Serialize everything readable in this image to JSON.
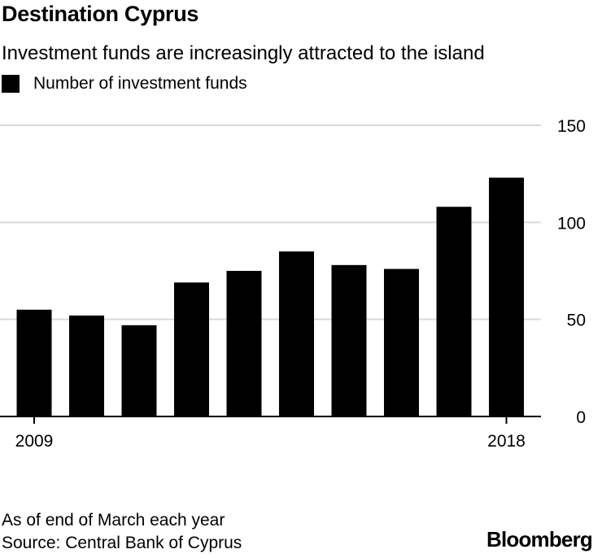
{
  "title": "Destination Cyprus",
  "subtitle": "Investment funds are increasingly attracted to the island",
  "note": "As of end of March each year",
  "source": "Source: Central Bank of Cyprus",
  "brand": "Bloomberg",
  "colors": {
    "bar": "#000000",
    "grid": "#d9d9d9",
    "baseline": "#000000"
  },
  "chart_data": {
    "type": "bar",
    "title": "Destination Cyprus",
    "subtitle": "Investment funds are increasingly attracted to the island",
    "categories": [
      "2009",
      "2010",
      "2011",
      "2012",
      "2013",
      "2014",
      "2015",
      "2016",
      "2017",
      "2018"
    ],
    "x_tick_labels": [
      "2009",
      "2018"
    ],
    "series": [
      {
        "name": "Number of investment funds",
        "values": [
          55,
          52,
          47,
          69,
          75,
          85,
          78,
          76,
          108,
          123
        ]
      }
    ],
    "ylim": [
      0,
      150
    ],
    "yticks": [
      0,
      50,
      100,
      150
    ],
    "y_axis_side": "right",
    "grid": true,
    "legend": "top-left"
  }
}
